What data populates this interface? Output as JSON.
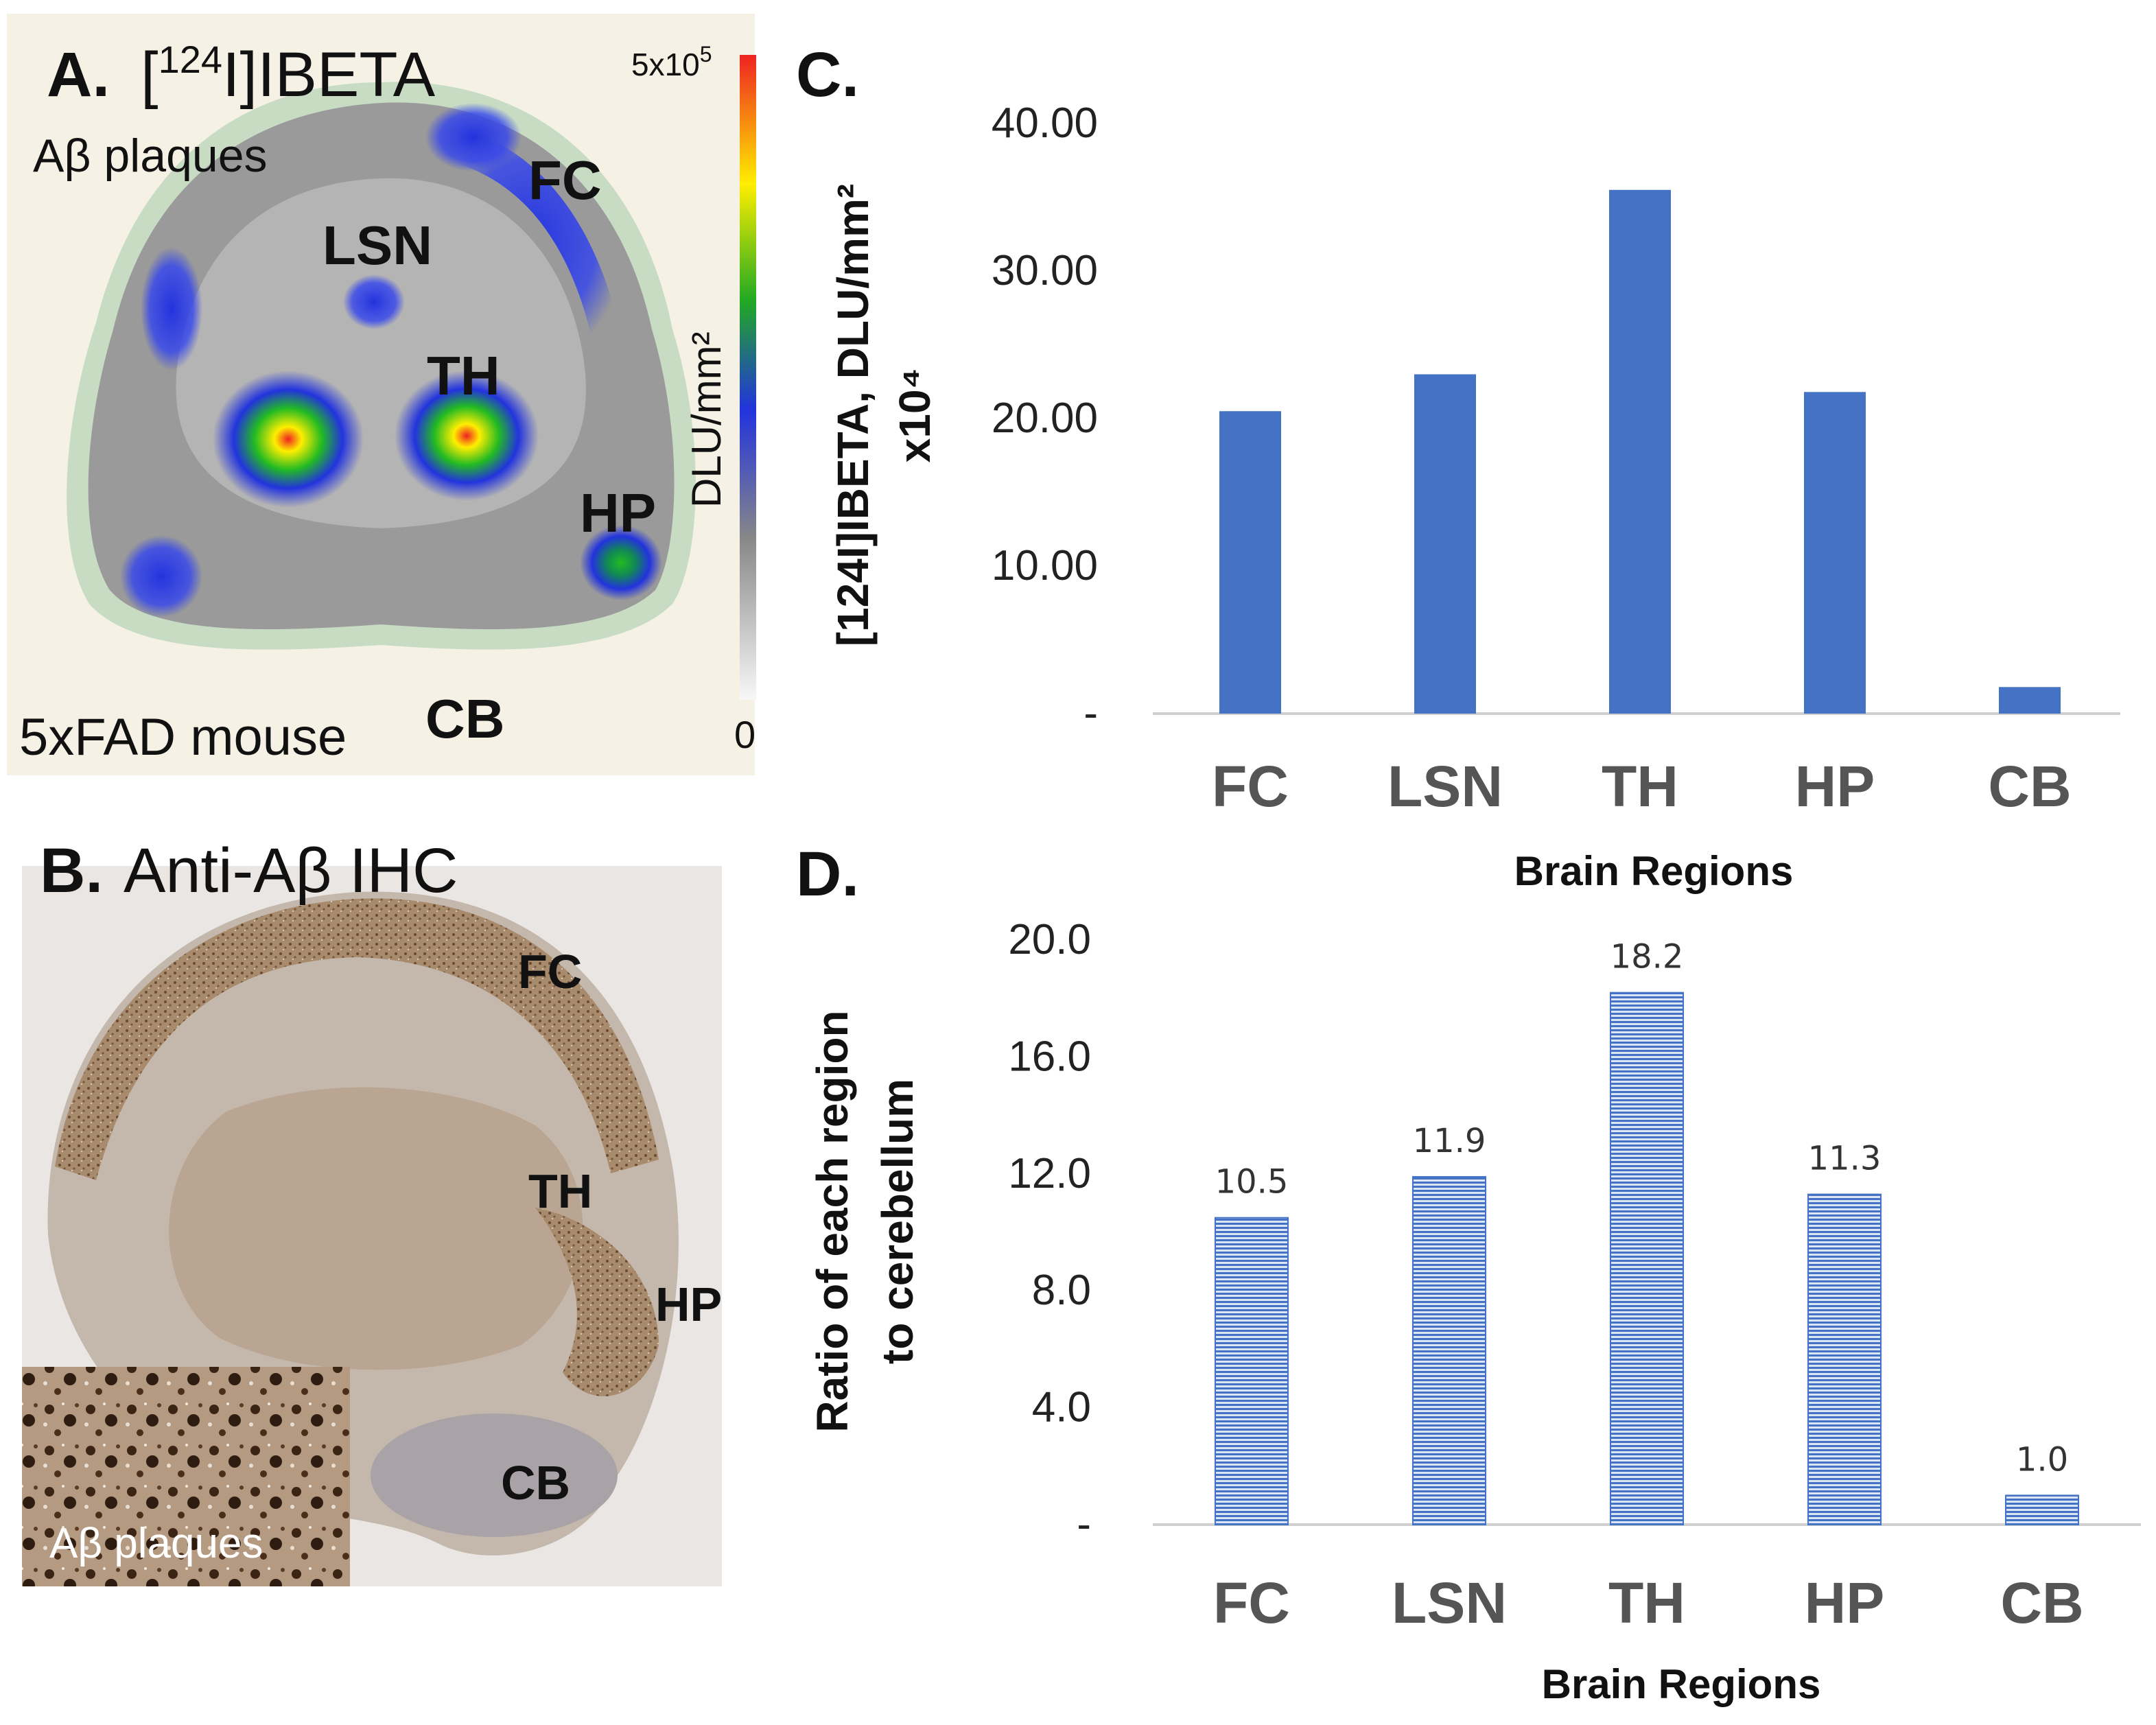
{
  "panel_a": {
    "letter": "A.",
    "title_pre": "[",
    "title_sup": "124",
    "title_post": "I]IBETA",
    "label_plaques": "Aβ plaques",
    "label_mouse": "5xFAD mouse",
    "regions": [
      "FC",
      "LSN",
      "TH",
      "HP",
      "CB"
    ],
    "colorbar_max_base": "5x10",
    "colorbar_max_exp": "5",
    "colorbar_min": "0",
    "colorbar_unit": "DLU/mm²",
    "colors": {
      "background": "#f5f1e4",
      "halo": "#c8dcc4",
      "tissue": "#9a9a9a",
      "low": "#2233dd",
      "mid": "#22bb22",
      "high": "#ffee00",
      "peak": "#ee2222"
    }
  },
  "panel_b": {
    "letter": "B.",
    "title": "Anti-Aβ IHC",
    "regions": [
      "FC",
      "TH",
      "HP",
      "CB"
    ],
    "inset_label": "Aβ plaques",
    "colors": {
      "background": "#e9e6e3",
      "stain": "#8d6a4c",
      "inset": "#6b5240"
    }
  },
  "chart_data": [
    {
      "panel": "C.",
      "type": "bar",
      "categories": [
        "FC",
        "LSN",
        "TH",
        "HP",
        "CB"
      ],
      "values": [
        20.5,
        23.0,
        35.5,
        21.8,
        1.8
      ],
      "ylim": [
        0,
        40
      ],
      "yticks": [
        "-",
        "10.00",
        "20.00",
        "30.00",
        "40.00"
      ],
      "ylabel_line1": "[124I]IBETA, DLU/mm²",
      "ylabel_line2": "x10⁴",
      "xlabel": "Brain Regions",
      "bar_color": "#4472c4"
    },
    {
      "panel": "D.",
      "type": "bar",
      "categories": [
        "FC",
        "LSN",
        "TH",
        "HP",
        "CB"
      ],
      "values": [
        10.5,
        11.9,
        18.2,
        11.3,
        1.0
      ],
      "data_labels": [
        "10.5",
        "11.9",
        "18.2",
        "11.3",
        "1.0"
      ],
      "ylim": [
        0,
        20
      ],
      "yticks": [
        "-",
        "4.0",
        "8.0",
        "12.0",
        "16.0",
        "20.0"
      ],
      "ylabel_line1": "Ratio of each region",
      "ylabel_line2": "to cerebellum",
      "xlabel": "Brain Regions",
      "bar_color": "#4472c4"
    }
  ]
}
